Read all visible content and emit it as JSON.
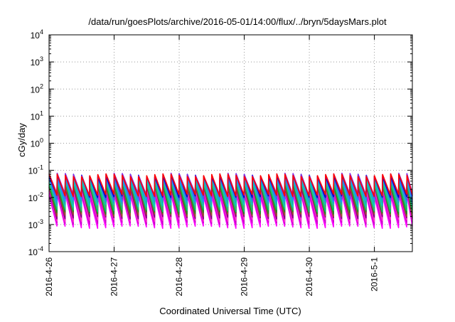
{
  "chart_data": {
    "type": "line",
    "title": "/data/run/goesPlots/archive/2016-05-01/14:00/flux/../bryn/5daysMars.plot",
    "xlabel": "Coordinated Universal Time (UTC)",
    "ylabel": "cGy/day",
    "yscale": "log",
    "ylim": [
      0.0001,
      10000
    ],
    "xlim": [
      "2016-04-26T00:00",
      "2016-05-01T14:00"
    ],
    "x_tick_labels": [
      "2016-4-26",
      "2016-4-27",
      "2016-4-28",
      "2016-4-29",
      "2016-4-30",
      "2016-5-1"
    ],
    "y_ticks": [
      {
        "base": "10",
        "exp": "-4"
      },
      {
        "base": "10",
        "exp": "-3"
      },
      {
        "base": "10",
        "exp": "-2"
      },
      {
        "base": "10",
        "exp": "-1"
      },
      {
        "base": "10",
        "exp": "0"
      },
      {
        "base": "10",
        "exp": "1"
      },
      {
        "base": "10",
        "exp": "2"
      },
      {
        "base": "10",
        "exp": "3"
      },
      {
        "base": "10",
        "exp": "4"
      }
    ],
    "grid": true,
    "legend": "none",
    "sawtooth_period_hours": 3,
    "series": [
      {
        "color": "#ff00ff",
        "peak": 0.012,
        "trough": 0.0008
      },
      {
        "color": "#cc00cc",
        "peak": 0.016,
        "trough": 0.0011
      },
      {
        "color": "#ff33cc",
        "peak": 0.02,
        "trough": 0.0014
      },
      {
        "color": "#800080",
        "peak": 0.024,
        "trough": 0.0018
      },
      {
        "color": "#a0522d",
        "peak": 0.028,
        "trough": 0.0022
      },
      {
        "color": "#228b22",
        "peak": 0.032,
        "trough": 0.0027
      },
      {
        "color": "#00cc66",
        "peak": 0.036,
        "trough": 0.0033
      },
      {
        "color": "#3cb371",
        "peak": 0.04,
        "trough": 0.004
      },
      {
        "color": "#00cccc",
        "peak": 0.045,
        "trough": 0.005
      },
      {
        "color": "#20b2aa",
        "peak": 0.05,
        "trough": 0.006
      },
      {
        "color": "#1e90ff",
        "peak": 0.055,
        "trough": 0.0075
      },
      {
        "color": "#4169e1",
        "peak": 0.06,
        "trough": 0.009
      },
      {
        "color": "#0000cd",
        "peak": 0.065,
        "trough": 0.011
      },
      {
        "color": "#8a2be2",
        "peak": 0.07,
        "trough": 0.013
      },
      {
        "color": "#ff0000",
        "peak": 0.066,
        "trough": 0.012
      }
    ]
  }
}
